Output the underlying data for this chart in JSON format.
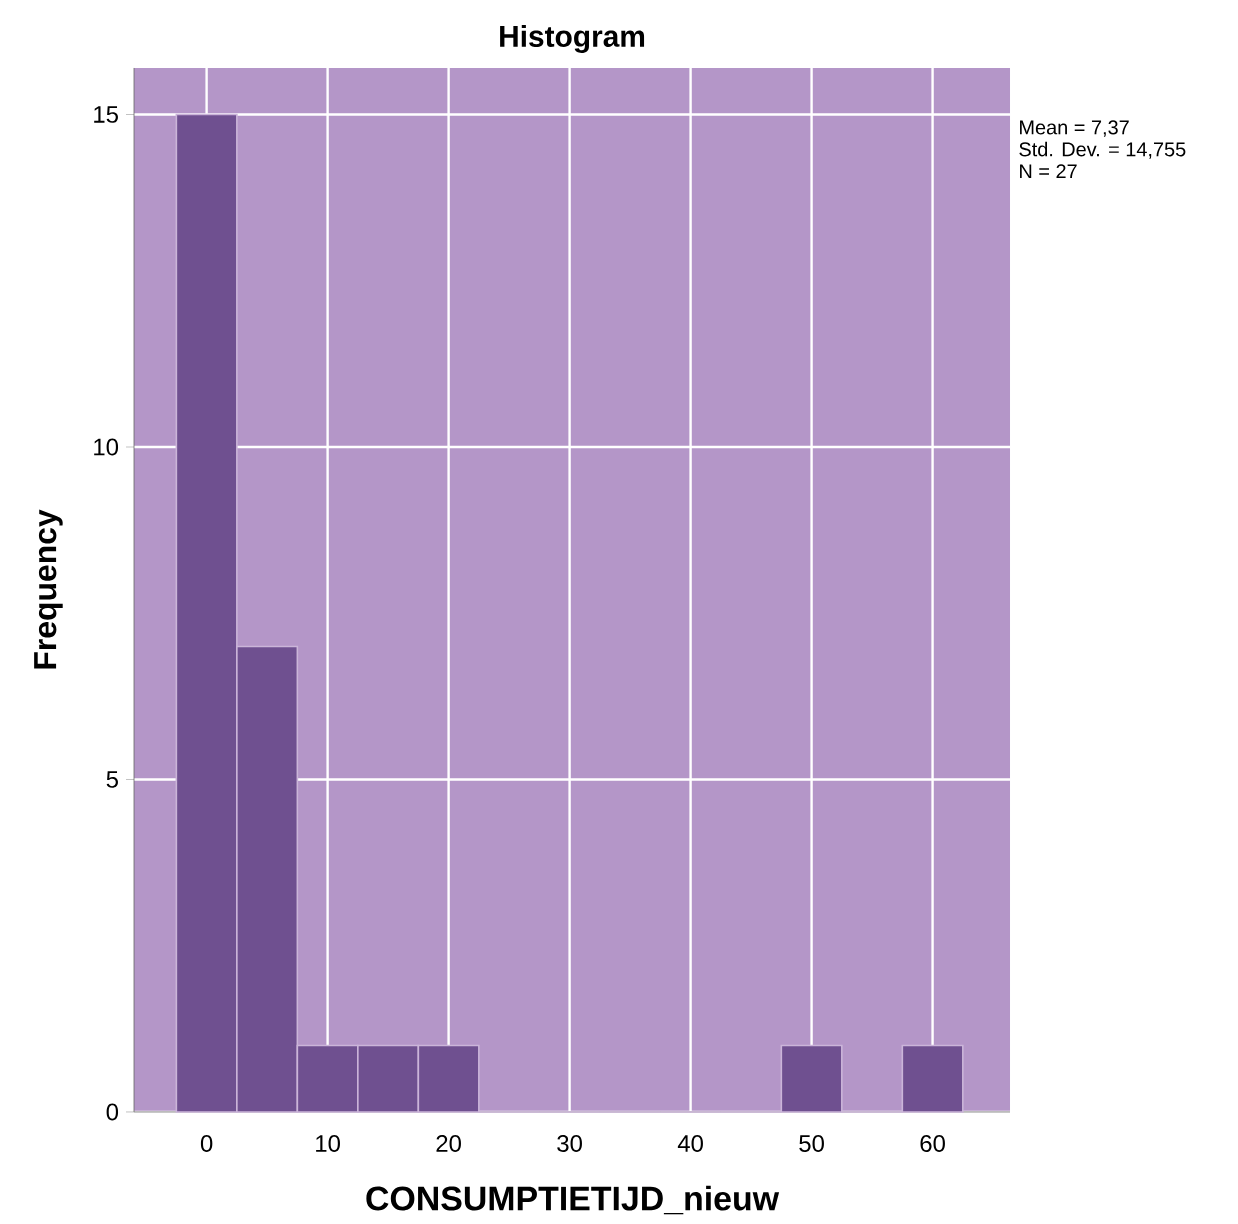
{
  "chart_data": {
    "type": "histogram",
    "title": "Histogram",
    "xlabel": "CONSUMPTIETIJD_nieuw",
    "ylabel": "Frequency",
    "bins": [
      -2.5,
      2.5,
      7.5,
      12.5,
      17.5,
      22.5,
      27.5,
      32.5,
      37.5,
      42.5,
      47.5,
      52.5,
      57.5,
      62.5
    ],
    "values": [
      15,
      7,
      1,
      1,
      1,
      0,
      0,
      0,
      0,
      0,
      1,
      0,
      1
    ],
    "color": "#6f5090",
    "xlim": [
      -6,
      66.4
    ],
    "ylim": [
      0,
      15.7
    ],
    "xticks": [
      0,
      10,
      20,
      30,
      40,
      50,
      60
    ],
    "yticks": [
      0,
      5,
      10,
      15
    ],
    "grid": true,
    "annotations": [
      "Mean = 7,37",
      "Std. Dev. = 14,755",
      "N = 27"
    ]
  }
}
